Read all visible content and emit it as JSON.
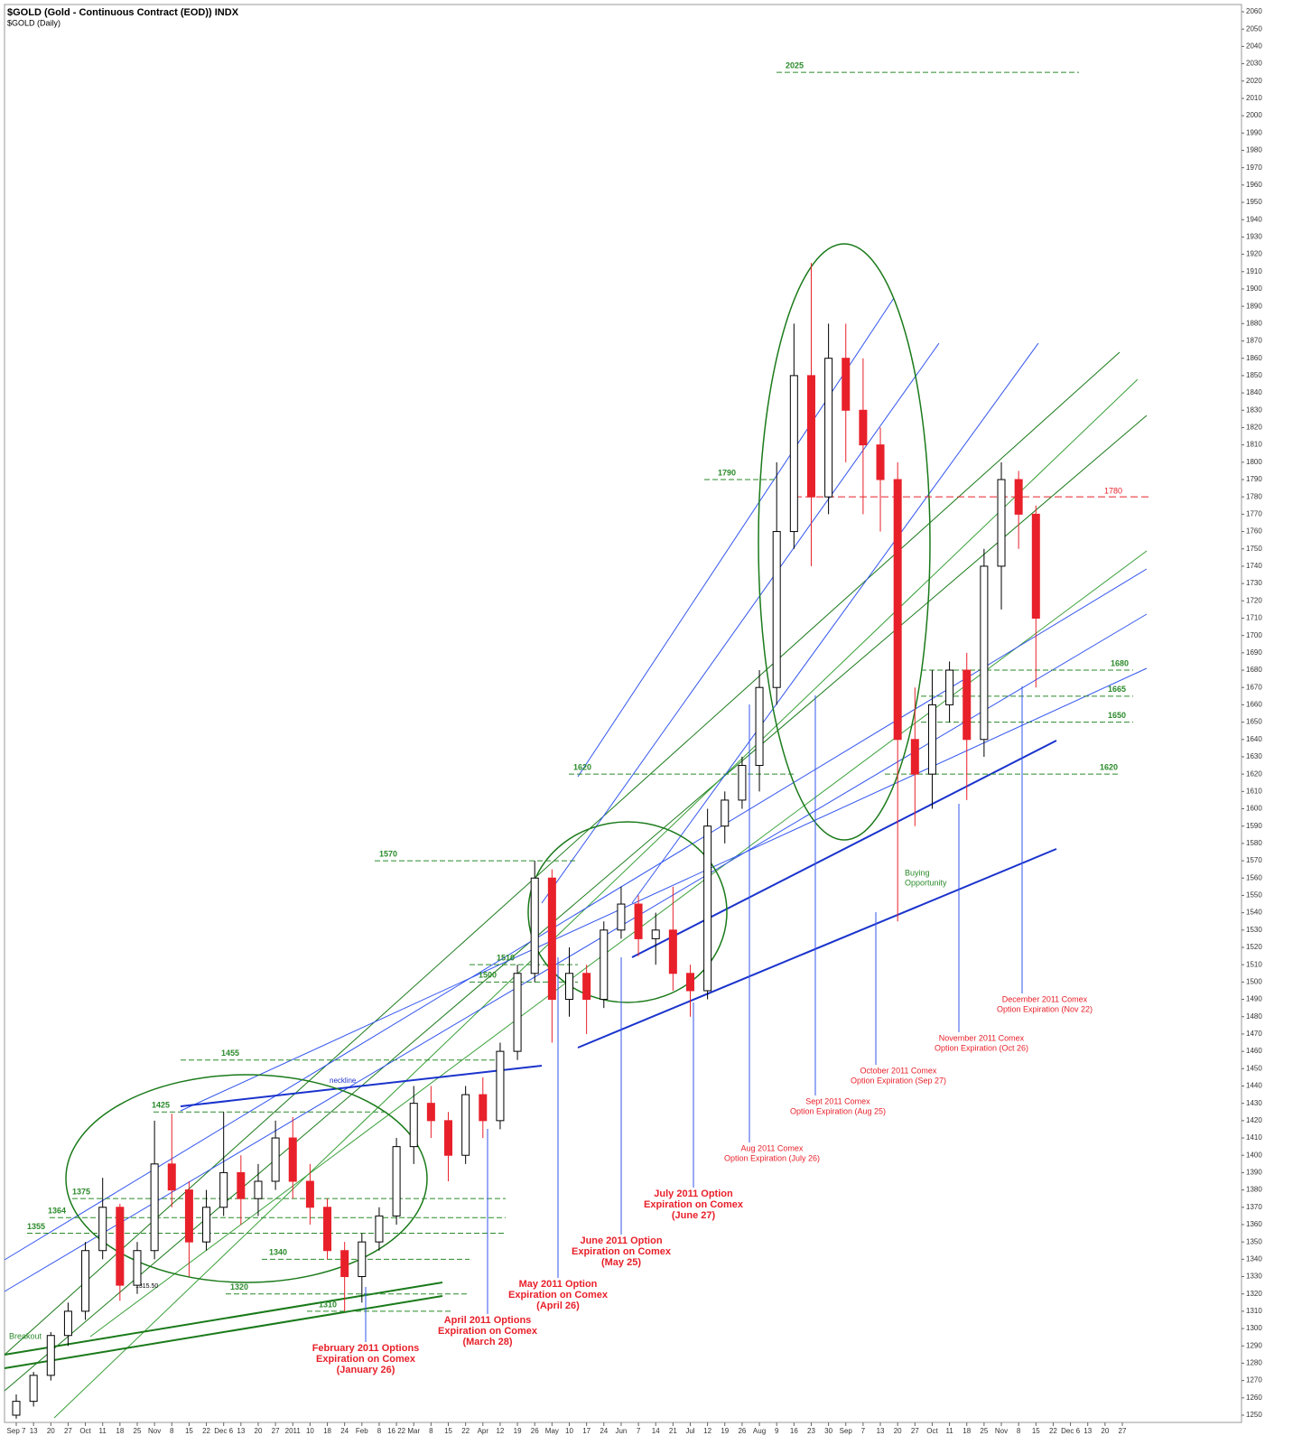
{
  "chart_data": {
    "type": "candlestick",
    "title": "$GOLD (Gold - Continuous Contract (EOD)) INDX",
    "subtitle": "$GOLD (Daily)",
    "categories": [
      "Sep 7",
      "13",
      "20",
      "27",
      "Oct",
      "11",
      "18",
      "25",
      "Nov",
      "8",
      "15",
      "22",
      "Dec 6",
      "13",
      "20",
      "27",
      "2011",
      "10",
      "18",
      "24",
      "Feb",
      "8",
      "16 22",
      "Mar",
      "8",
      "15",
      "22",
      "Apr",
      "12",
      "19",
      "26",
      "May",
      "10",
      "17",
      "24",
      "Jun",
      "7",
      "14",
      "21",
      "Jul",
      "12",
      "19",
      "26",
      "Aug",
      "9",
      "16",
      "23",
      "30",
      "Sep",
      "7",
      "13",
      "20",
      "27",
      "Oct",
      "11",
      "18",
      "25",
      "Nov",
      "8",
      "15",
      "22",
      "Dec 6",
      "13",
      "20",
      "27"
    ],
    "open": [
      1250,
      1258,
      1273,
      1296,
      1310,
      1345,
      1370,
      1325,
      1345,
      1395,
      1380,
      1350,
      1370,
      1390,
      1375,
      1385,
      1410,
      1385,
      1370,
      1345,
      1330,
      1350,
      1365,
      1405,
      1430,
      1420,
      1400,
      1435,
      1420,
      1460,
      1505,
      1560,
      1490,
      1505,
      1490,
      1530,
      1545,
      1525,
      1530,
      1505,
      1495,
      1590,
      1605,
      1625,
      1670,
      1760,
      1850,
      1780,
      1860,
      1830,
      1810,
      1790,
      1640,
      1620,
      1660,
      1680,
      1640,
      1740,
      1790,
      1770,
      null,
      null,
      null,
      null,
      null
    ],
    "high": [
      1262,
      1275,
      1298,
      1315,
      1350,
      1387,
      1372,
      1350,
      1420,
      1424,
      1385,
      1380,
      1425,
      1400,
      1395,
      1420,
      1422,
      1395,
      1375,
      1350,
      1355,
      1370,
      1410,
      1440,
      1440,
      1425,
      1440,
      1445,
      1465,
      1510,
      1570,
      1565,
      1520,
      1510,
      1535,
      1555,
      1550,
      1540,
      1555,
      1510,
      1600,
      1610,
      1630,
      1680,
      1800,
      1880,
      1915,
      1880,
      1880,
      1860,
      1820,
      1800,
      1670,
      1680,
      1685,
      1690,
      1750,
      1800,
      1795,
      1775,
      null,
      null,
      null,
      null,
      null
    ],
    "low": [
      1248,
      1255,
      1270,
      1290,
      1305,
      1340,
      1316,
      1320,
      1340,
      1370,
      1330,
      1345,
      1365,
      1360,
      1365,
      1380,
      1375,
      1360,
      1340,
      1310,
      1315,
      1345,
      1360,
      1395,
      1410,
      1385,
      1395,
      1410,
      1415,
      1455,
      1500,
      1465,
      1480,
      1470,
      1485,
      1525,
      1515,
      1510,
      1495,
      1480,
      1490,
      1580,
      1600,
      1610,
      1660,
      1750,
      1740,
      1770,
      1800,
      1770,
      1760,
      1535,
      1590,
      1600,
      1650,
      1605,
      1630,
      1715,
      1750,
      1670,
      null,
      null,
      null,
      null,
      null
    ],
    "close": [
      1258,
      1273,
      1296,
      1310,
      1345,
      1370,
      1325,
      1345,
      1395,
      1380,
      1350,
      1370,
      1390,
      1375,
      1385,
      1410,
      1385,
      1370,
      1345,
      1330,
      1350,
      1365,
      1405,
      1430,
      1420,
      1400,
      1435,
      1420,
      1460,
      1505,
      1560,
      1490,
      1505,
      1490,
      1530,
      1545,
      1525,
      1530,
      1505,
      1495,
      1590,
      1605,
      1625,
      1670,
      1760,
      1850,
      1780,
      1860,
      1830,
      1810,
      1790,
      1640,
      1620,
      1660,
      1680,
      1640,
      1740,
      1790,
      1770,
      1710,
      null,
      null,
      null,
      null,
      null
    ],
    "up_color": "#ffffff",
    "down_color": "#e8202a",
    "ylim": [
      1250,
      2060
    ],
    "yticks": [
      1250,
      1260,
      1270,
      1280,
      1290,
      1300,
      1310,
      1320,
      1330,
      1340,
      1350,
      1360,
      1370,
      1380,
      1390,
      1400,
      1410,
      1420,
      1430,
      1440,
      1450,
      1460,
      1470,
      1480,
      1490,
      1500,
      1510,
      1520,
      1530,
      1540,
      1550,
      1560,
      1570,
      1580,
      1590,
      1600,
      1610,
      1620,
      1630,
      1640,
      1650,
      1660,
      1670,
      1680,
      1690,
      1700,
      1710,
      1720,
      1730,
      1740,
      1750,
      1760,
      1770,
      1780,
      1790,
      1800,
      1810,
      1820,
      1830,
      1840,
      1850,
      1860,
      1870,
      1880,
      1890,
      1900,
      1910,
      1920,
      1930,
      1940,
      1950,
      1960,
      1970,
      1980,
      1990,
      2000,
      2010,
      2020,
      2030,
      2040,
      2050,
      2060
    ],
    "levels": [
      2025,
      1790,
      1620,
      1570,
      1510,
      1500,
      1455,
      1425,
      1375,
      1364,
      1355,
      1340,
      1320,
      1310,
      1680,
      1665,
      1650,
      1620
    ],
    "levels_color": "#2a8a2a",
    "red_levels": [
      1780
    ],
    "annotations": [
      [
        "February 2011 Options",
        "Expiration on Comex",
        "(January 26)"
      ],
      [
        "April 2011 Options",
        "Expiration on Comex",
        "(March 28)"
      ],
      [
        "May 2011 Option",
        "Expiration on Comex",
        "(April 26)"
      ],
      [
        "June 2011 Option",
        "Expiration on Comex",
        "(May 25)"
      ],
      [
        "July 2011 Option",
        "Expiration on Comex",
        "(June 27)"
      ],
      [
        "Aug 2011 Comex",
        "Option Expiration (July 26)"
      ],
      [
        "Sept 2011 Comex",
        "Option Expiration (Aug 25)"
      ],
      [
        "October 2011 Comex",
        "Option Expiration (Sep 27)"
      ],
      [
        "November 2011 Comex",
        "Option Expiration  (Oct 26)"
      ],
      [
        "December 2011 Comex",
        "Option Expiration (Nov 22)"
      ]
    ],
    "notes": [
      "neckline",
      "Breakout",
      "Buying",
      "Opportunity",
      "1315.50"
    ]
  }
}
